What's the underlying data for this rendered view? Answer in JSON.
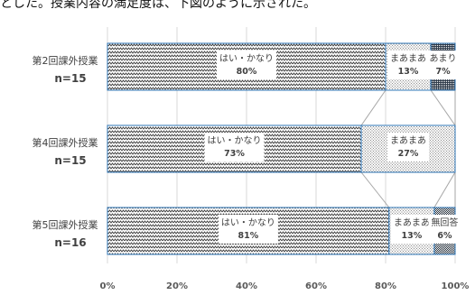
{
  "header_text": "とした。授業内容の満足度は、下図のように示された。",
  "chart_data": {
    "type": "bar",
    "stacked": true,
    "orientation": "horizontal",
    "categories": [
      {
        "label": "第2回課外授業",
        "n": "n=15"
      },
      {
        "label": "第4回課外授業",
        "n": "n=15"
      },
      {
        "label": "第5回課外授業",
        "n": "n=16"
      }
    ],
    "series": [
      {
        "name": "はい・かなり",
        "values": [
          80,
          73,
          81
        ],
        "labels": [
          "80%",
          "73%",
          "81%"
        ],
        "pattern": "zigzag"
      },
      {
        "name": "まあまあ",
        "values": [
          13,
          27,
          13
        ],
        "labels": [
          "13%",
          "27%",
          "13%"
        ],
        "pattern": "dots"
      },
      {
        "name": "あまり",
        "values": [
          7,
          0,
          0
        ],
        "labels": [
          "7%",
          "",
          ""
        ],
        "pattern": "grid"
      },
      {
        "name": "無回答",
        "values": [
          0,
          0,
          6
        ],
        "labels": [
          "",
          "",
          "6%"
        ],
        "pattern": "checker"
      }
    ],
    "xlim": [
      0,
      100
    ],
    "xticks": [
      "0%",
      "20%",
      "40%",
      "60%",
      "80%",
      "100%"
    ],
    "grid": true,
    "series_lines": true
  }
}
